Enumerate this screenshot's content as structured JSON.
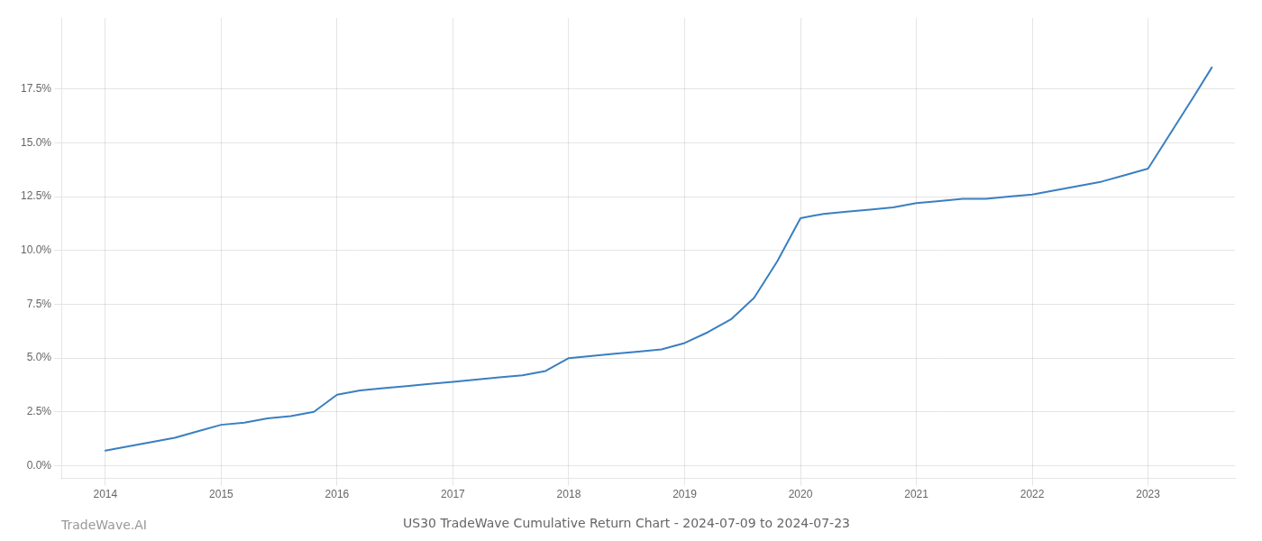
{
  "chart_data": {
    "type": "line",
    "title": "US30 TradeWave Cumulative Return Chart - 2024-07-09 to 2024-07-23",
    "annotations": [
      "TradeWave.AI"
    ],
    "x": [
      2014.0,
      2014.2,
      2014.4,
      2014.6,
      2014.8,
      2015.0,
      2015.2,
      2015.4,
      2015.6,
      2015.8,
      2016.0,
      2016.2,
      2016.4,
      2016.6,
      2016.8,
      2017.0,
      2017.2,
      2017.4,
      2017.6,
      2017.8,
      2018.0,
      2018.2,
      2018.4,
      2018.6,
      2018.8,
      2019.0,
      2019.2,
      2019.4,
      2019.6,
      2019.8,
      2020.0,
      2020.1,
      2020.2,
      2020.4,
      2020.6,
      2020.8,
      2021.0,
      2021.2,
      2021.4,
      2021.6,
      2021.8,
      2022.0,
      2022.2,
      2022.4,
      2022.6,
      2022.8,
      2023.0,
      2023.2,
      2023.4,
      2023.55
    ],
    "values": [
      0.007,
      0.009,
      0.011,
      0.013,
      0.016,
      0.019,
      0.02,
      0.022,
      0.023,
      0.025,
      0.033,
      0.035,
      0.036,
      0.037,
      0.038,
      0.039,
      0.04,
      0.041,
      0.042,
      0.044,
      0.05,
      0.051,
      0.052,
      0.053,
      0.054,
      0.057,
      0.062,
      0.068,
      0.078,
      0.095,
      0.115,
      0.116,
      0.117,
      0.118,
      0.119,
      0.12,
      0.122,
      0.123,
      0.124,
      0.124,
      0.125,
      0.126,
      0.128,
      0.13,
      0.132,
      0.135,
      0.138,
      0.155,
      0.172,
      0.185
    ],
    "color": "#3a7fc1",
    "xlim": [
      2013.62,
      2023.75
    ],
    "ylim": [
      -0.006,
      0.208
    ],
    "xticks": [
      2014,
      2015,
      2016,
      2017,
      2018,
      2019,
      2020,
      2021,
      2022,
      2023
    ],
    "yticks": [
      {
        "value": 0.0,
        "label": "0.0%"
      },
      {
        "value": 0.025,
        "label": "2.5%"
      },
      {
        "value": 0.05,
        "label": "5.0%"
      },
      {
        "value": 0.075,
        "label": "7.5%"
      },
      {
        "value": 0.1,
        "label": "10.0%"
      },
      {
        "value": 0.125,
        "label": "12.5%"
      },
      {
        "value": 0.15,
        "label": "15.0%"
      },
      {
        "value": 0.175,
        "label": "17.5%"
      }
    ],
    "grid": true
  }
}
